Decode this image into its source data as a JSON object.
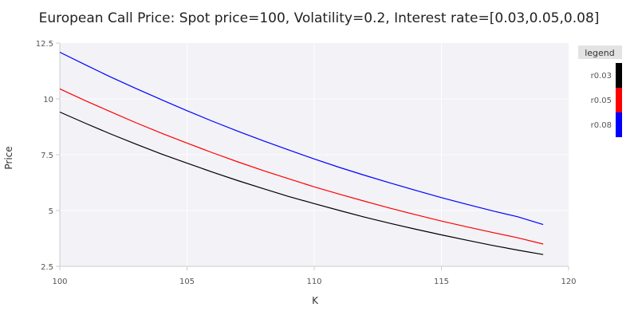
{
  "chart_data": {
    "type": "line",
    "title": "European Call Price: Spot price=100, Volatility=0.2, Interest rate=[0.03,0.05,0.08]",
    "xlabel": "K",
    "ylabel": "Price",
    "xlim": [
      100,
      120
    ],
    "ylim": [
      2.5,
      12.5
    ],
    "xticks": [
      100,
      105,
      110,
      115,
      120
    ],
    "xtick_labels": [
      "100",
      "105",
      "110",
      "115",
      "120"
    ],
    "yticks": [
      2.5,
      5,
      7.5,
      10,
      12.5
    ],
    "ytick_labels": [
      "2.5",
      "5",
      "7.5",
      "10",
      "12.5"
    ],
    "grid": true,
    "legend": {
      "title": "legend",
      "placement": "right"
    },
    "x": [
      100,
      101,
      102,
      103,
      104,
      105,
      106,
      107,
      108,
      109,
      110,
      111,
      112,
      113,
      114,
      115,
      116,
      117,
      118,
      119
    ],
    "series": [
      {
        "name": "r0.03",
        "color": "#000000",
        "values": [
          9.41,
          8.91,
          8.43,
          7.97,
          7.53,
          7.12,
          6.72,
          6.34,
          5.98,
          5.63,
          5.31,
          5.0,
          4.7,
          4.42,
          4.16,
          3.91,
          3.67,
          3.44,
          3.23,
          3.03
        ]
      },
      {
        "name": "r0.05",
        "color": "#ff0000",
        "values": [
          10.45,
          9.92,
          9.42,
          8.93,
          8.46,
          8.02,
          7.59,
          7.18,
          6.79,
          6.42,
          6.06,
          5.73,
          5.41,
          5.1,
          4.81,
          4.53,
          4.27,
          4.02,
          3.78,
          3.5
        ]
      },
      {
        "name": "r0.08",
        "color": "#0000ff",
        "values": [
          12.09,
          11.53,
          10.98,
          10.46,
          9.96,
          9.47,
          9.0,
          8.55,
          8.12,
          7.71,
          7.31,
          6.93,
          6.57,
          6.23,
          5.9,
          5.58,
          5.28,
          4.99,
          4.72,
          4.37
        ]
      }
    ]
  }
}
